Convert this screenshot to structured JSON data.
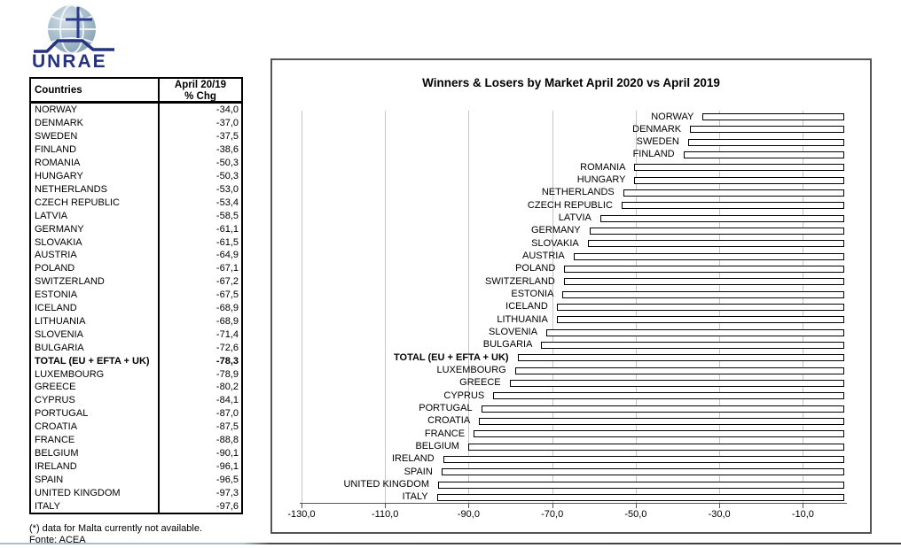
{
  "logo": {
    "text": "UNRAE"
  },
  "table": {
    "header_country": "Countries",
    "header_change_line1": "April 20/19",
    "header_change_line2": "% Chg",
    "rows": [
      {
        "country": "NORWAY",
        "value": "-34,0",
        "bold": false
      },
      {
        "country": "DENMARK",
        "value": "-37,0",
        "bold": false
      },
      {
        "country": "SWEDEN",
        "value": "-37,5",
        "bold": false
      },
      {
        "country": "FINLAND",
        "value": "-38,6",
        "bold": false
      },
      {
        "country": "ROMANIA",
        "value": "-50,3",
        "bold": false
      },
      {
        "country": "HUNGARY",
        "value": "-50,3",
        "bold": false
      },
      {
        "country": "NETHERLANDS",
        "value": "-53,0",
        "bold": false
      },
      {
        "country": "CZECH REPUBLIC",
        "value": "-53,4",
        "bold": false
      },
      {
        "country": "LATVIA",
        "value": "-58,5",
        "bold": false
      },
      {
        "country": "GERMANY",
        "value": "-61,1",
        "bold": false
      },
      {
        "country": "SLOVAKIA",
        "value": "-61,5",
        "bold": false
      },
      {
        "country": "AUSTRIA",
        "value": "-64,9",
        "bold": false
      },
      {
        "country": "POLAND",
        "value": "-67,1",
        "bold": false
      },
      {
        "country": "SWITZERLAND",
        "value": "-67,2",
        "bold": false
      },
      {
        "country": "ESTONIA",
        "value": "-67,5",
        "bold": false
      },
      {
        "country": "ICELAND",
        "value": "-68,9",
        "bold": false
      },
      {
        "country": "LITHUANIA",
        "value": "-68,9",
        "bold": false
      },
      {
        "country": "SLOVENIA",
        "value": "-71,4",
        "bold": false
      },
      {
        "country": "BULGARIA",
        "value": "-72,6",
        "bold": false
      },
      {
        "country": "TOTAL (EU + EFTA + UK)",
        "value": "-78,3",
        "bold": true
      },
      {
        "country": "LUXEMBOURG",
        "value": "-78,9",
        "bold": false
      },
      {
        "country": "GREECE",
        "value": "-80,2",
        "bold": false
      },
      {
        "country": "CYPRUS",
        "value": "-84,1",
        "bold": false
      },
      {
        "country": "PORTUGAL",
        "value": "-87,0",
        "bold": false
      },
      {
        "country": "CROATIA",
        "value": "-87,5",
        "bold": false
      },
      {
        "country": "FRANCE",
        "value": "-88,8",
        "bold": false
      },
      {
        "country": "BELGIUM",
        "value": "-90,1",
        "bold": false
      },
      {
        "country": "IRELAND",
        "value": "-96,1",
        "bold": false
      },
      {
        "country": "SPAIN",
        "value": "-96,5",
        "bold": false
      },
      {
        "country": "UNITED KINGDOM",
        "value": "-97,3",
        "bold": false
      },
      {
        "country": "ITALY",
        "value": "-97,6",
        "bold": false
      }
    ]
  },
  "notes": {
    "malta": "(*) data for Malta currently not available.",
    "source": "Fonte: ACEA"
  },
  "chart_data": {
    "type": "bar",
    "orientation": "horizontal",
    "title": "Winners & Losers by Market  April 2020 vs April 2019",
    "categories": [
      "NORWAY",
      "DENMARK",
      "SWEDEN",
      "FINLAND",
      "ROMANIA",
      "HUNGARY",
      "NETHERLANDS",
      "CZECH REPUBLIC",
      "LATVIA",
      "GERMANY",
      "SLOVAKIA",
      "AUSTRIA",
      "POLAND",
      "SWITZERLAND",
      "ESTONIA",
      "ICELAND",
      "LITHUANIA",
      "SLOVENIA",
      "BULGARIA",
      "TOTAL (EU + EFTA + UK)",
      "LUXEMBOURG",
      "GREECE",
      "CYPRUS",
      "PORTUGAL",
      "CROATIA",
      "FRANCE",
      "BELGIUM",
      "IRELAND",
      "SPAIN",
      "UNITED KINGDOM",
      "ITALY"
    ],
    "values": [
      -34.0,
      -37.0,
      -37.5,
      -38.6,
      -50.3,
      -50.3,
      -53.0,
      -53.4,
      -58.5,
      -61.1,
      -61.5,
      -64.9,
      -67.1,
      -67.2,
      -67.5,
      -68.9,
      -68.9,
      -71.4,
      -72.6,
      -78.3,
      -78.9,
      -80.2,
      -84.1,
      -87.0,
      -87.5,
      -88.8,
      -90.1,
      -96.1,
      -96.5,
      -97.3,
      -97.6
    ],
    "emphasis_index": 19,
    "xlim": [
      -137,
      7
    ],
    "xticks": [
      -130,
      -110,
      -90,
      -70,
      -50,
      -30,
      -10
    ],
    "xtick_labels": [
      "-130,0",
      "-110,0",
      "-90,0",
      "-70,0",
      "-50,0",
      "-30,0",
      "-10,0"
    ],
    "grid": true,
    "bar_fill": "#ffffff",
    "bar_border": "#000000"
  }
}
